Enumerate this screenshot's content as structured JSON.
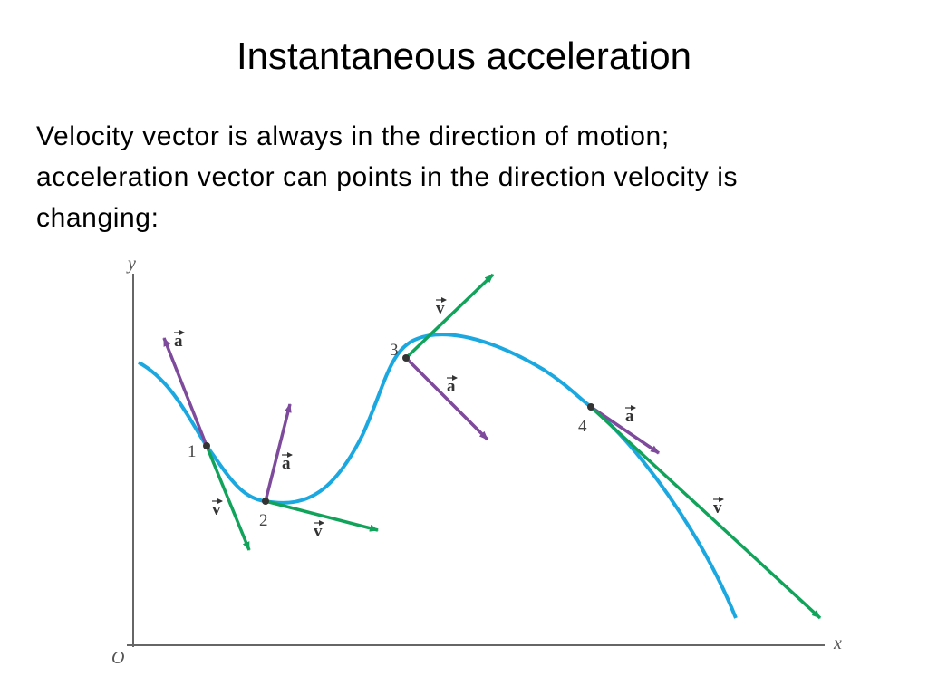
{
  "title": "Instantaneous acceleration",
  "body": {
    "lines": [
      "Velocity vector is always in the direction of motion;",
      "acceleration vector can points in the direction velocity is",
      "changing:"
    ]
  },
  "diagram": {
    "axis_labels": {
      "y": "y",
      "x": "x",
      "origin": "O"
    },
    "points": [
      "1",
      "2",
      "3",
      "4"
    ],
    "vector_labels": {
      "acceleration": "a",
      "velocity": "v"
    }
  }
}
